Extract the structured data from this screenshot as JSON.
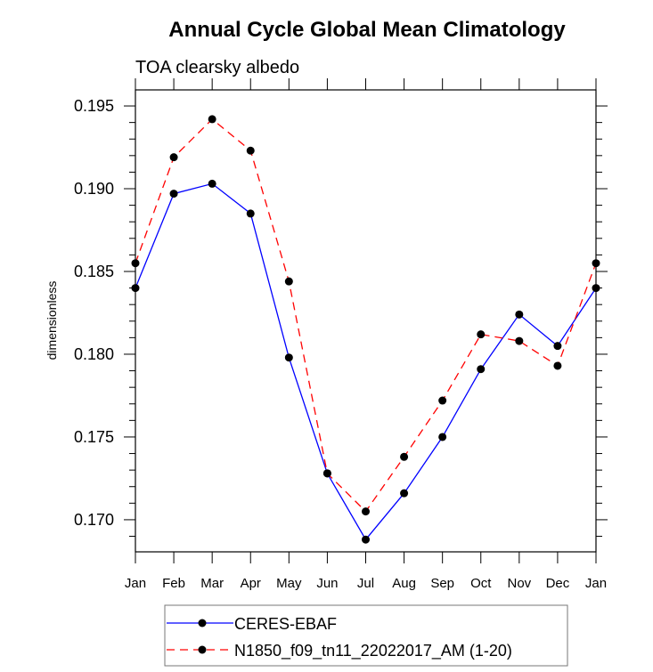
{
  "chart_data": {
    "type": "line",
    "title": "Annual Cycle Global Mean Climatology",
    "subtitle": "TOA clearsky albedo",
    "xlabel": "",
    "ylabel": "dimensionless",
    "categories": [
      "Jan",
      "Feb",
      "Mar",
      "Apr",
      "May",
      "Jun",
      "Jul",
      "Aug",
      "Sep",
      "Oct",
      "Nov",
      "Dec",
      "Jan"
    ],
    "ylim": [
      0.16806,
      0.19597
    ],
    "yticks": [
      0.17,
      0.175,
      0.18,
      0.185,
      0.19,
      0.195
    ],
    "ytick_labels": [
      "0.170",
      "0.175",
      "0.180",
      "0.185",
      "0.190",
      "0.195"
    ],
    "y_minor_step": 0.001,
    "grid": false,
    "legend_position": "bottom",
    "series": [
      {
        "name": "CERES-EBAF",
        "color": "#0000ff",
        "dash": "solid",
        "marker": "filled-circle",
        "values": [
          0.184,
          0.1897,
          0.1903,
          0.1885,
          0.1798,
          0.1728,
          0.1688,
          0.1716,
          0.175,
          0.1791,
          0.1824,
          0.1805,
          0.184
        ]
      },
      {
        "name": "N1850_f09_tn11_22022017_AM (1-20)",
        "color": "#ff0000",
        "dash": "dashed",
        "marker": "filled-circle",
        "values": [
          0.1855,
          0.1919,
          0.1942,
          0.1923,
          0.1844,
          0.1728,
          0.1705,
          0.1738,
          0.1772,
          0.1812,
          0.1808,
          0.1793,
          0.1855
        ]
      }
    ]
  }
}
